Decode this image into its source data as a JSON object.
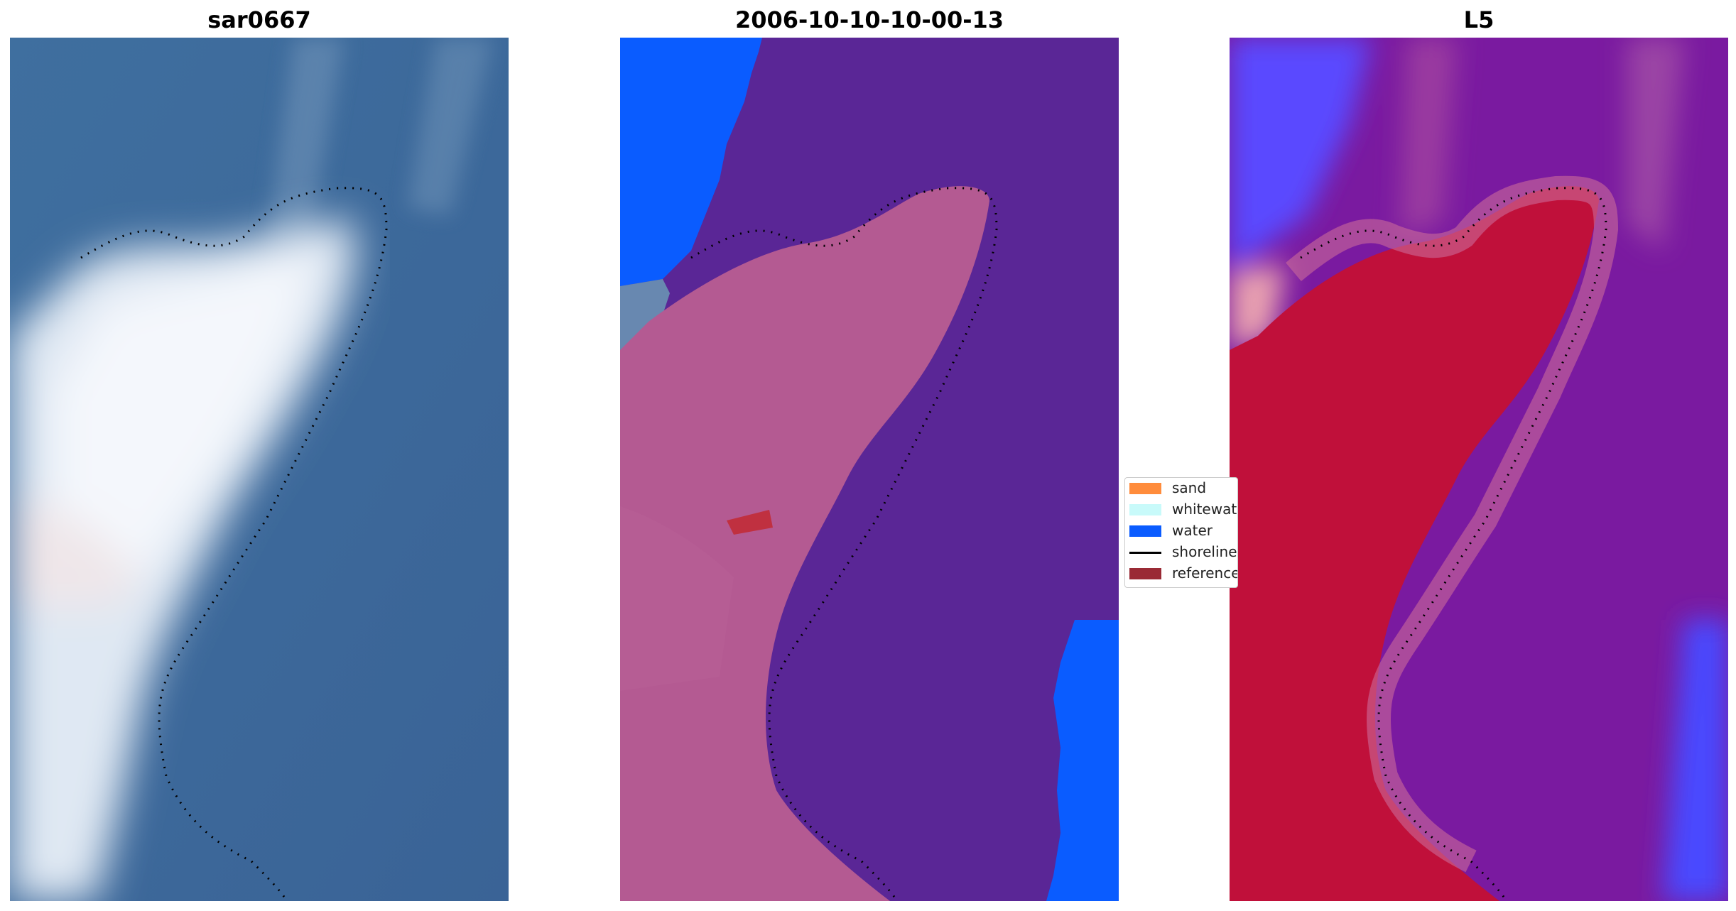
{
  "panels": [
    {
      "title": "sar0667",
      "kind": "rgb"
    },
    {
      "title": "2006-10-10-10-00-13",
      "kind": "classified"
    },
    {
      "title": "L5",
      "kind": "index"
    }
  ],
  "legend": {
    "items": [
      {
        "label": "sand",
        "color": "#ff8c3c",
        "type": "patch"
      },
      {
        "label": "whitewater",
        "color": "#c8fafa",
        "type": "patch"
      },
      {
        "label": "water",
        "color": "#0a5cff",
        "type": "patch"
      },
      {
        "label": "shoreline",
        "color": "#000000",
        "type": "line"
      },
      {
        "label": "reference shoreline",
        "color": "#9a2a35",
        "type": "patch"
      }
    ]
  },
  "colors": {
    "sea_rgb": "#3e6a9a",
    "sand_rgb": "#e8eef6",
    "classified_water": "#0a5cff",
    "classified_land": "#5a2696",
    "classified_sand_overlay": "#b45a92",
    "index_land": "#c0103a",
    "index_water": "#7a1aa0",
    "index_blue": "#4a4aff",
    "reference_red": "#c03040"
  }
}
